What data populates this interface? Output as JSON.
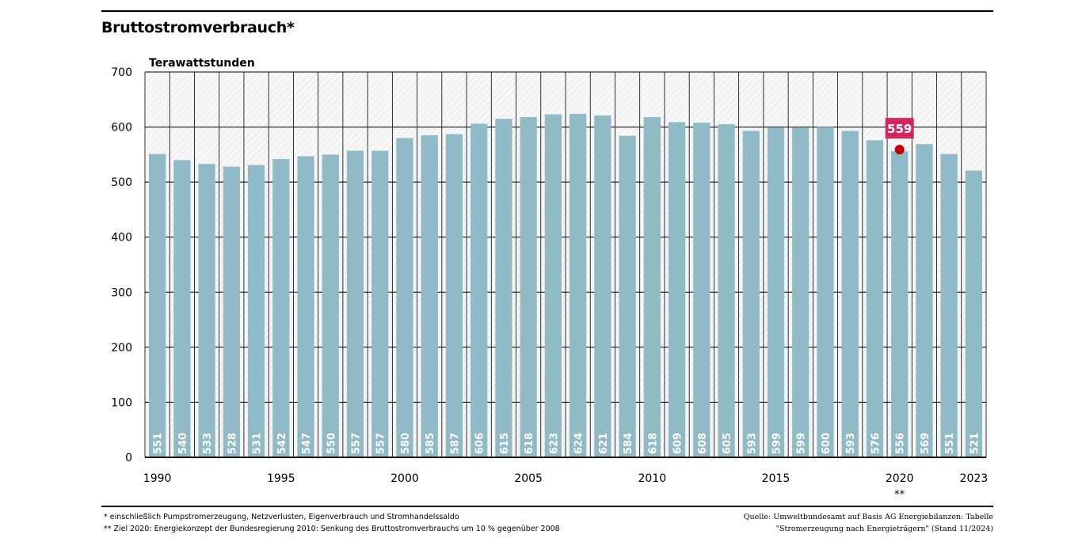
{
  "title": "Bruttostromverbrauch*",
  "footnotes": {
    "note1": "* einschließlich Pumpstromerzeugung, Netzverlusten, Eigenverbrauch und Stromhandelssaldo",
    "note2": "** Ziel 2020: Energiekonzept der Bundesregierung 2010: Senkung des Bruttostromverbrauchs um 10 % gegenüber 2008",
    "source1": "Quelle: Umweltbundesamt auf Basis AG Energiebilanzen: Tabelle",
    "source2": "\"Stromerzeugung nach Energieträgern\" (Stand 11/2024)"
  },
  "chart_data": {
    "type": "bar",
    "title": "Bruttostromverbrauch*",
    "ylabel": "Terawattstunden",
    "xlabel": "",
    "ylim": [
      0,
      700
    ],
    "yticks": [
      0,
      100,
      200,
      300,
      400,
      500,
      600,
      700
    ],
    "grid": true,
    "categories": [
      "1990",
      "1991",
      "1992",
      "1993",
      "1994",
      "1995",
      "1996",
      "1997",
      "1998",
      "1999",
      "2000",
      "2001",
      "2002",
      "2003",
      "2004",
      "2005",
      "2006",
      "2007",
      "2008",
      "2009",
      "2010",
      "2011",
      "2012",
      "2013",
      "2014",
      "2015",
      "2016",
      "2017",
      "2018",
      "2019",
      "2020",
      "2021",
      "2022",
      "2023"
    ],
    "x_tick_labels": [
      "1990",
      "1995",
      "2000",
      "2005",
      "2010",
      "2015",
      "2020",
      "2023"
    ],
    "values": [
      551,
      540,
      533,
      528,
      531,
      542,
      547,
      550,
      557,
      557,
      580,
      585,
      587,
      606,
      615,
      618,
      623,
      624,
      621,
      584,
      618,
      609,
      608,
      605,
      593,
      599,
      599,
      600,
      593,
      576,
      556,
      569,
      551,
      521
    ],
    "target": {
      "year": "2020",
      "value": 559,
      "label": "559",
      "marker": "**"
    },
    "colors": {
      "bar": "#8fbac6",
      "target": "#c00000",
      "target_label_bg": "#d6245f"
    }
  }
}
